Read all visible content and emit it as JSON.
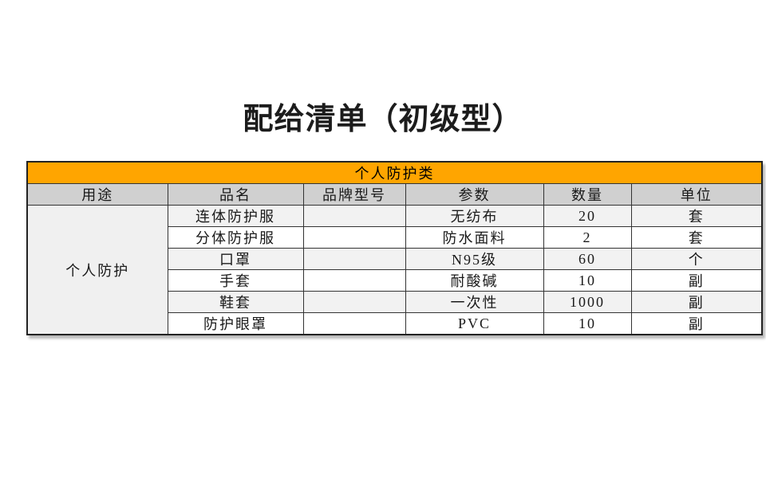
{
  "title": "配给清单（初级型）",
  "colors": {
    "band_orange": "#FFA500",
    "header_gray": "#D0D0D0",
    "alt_row_gray": "#F2F2F2",
    "usage_cell_gray": "#F0F0F0",
    "border": "#333333"
  },
  "table": {
    "category_header": "个人防护类",
    "columns": [
      {
        "label": "用途"
      },
      {
        "label": "品名"
      },
      {
        "label": "品牌型号"
      },
      {
        "label": "参数"
      },
      {
        "label": "数量"
      },
      {
        "label": "单位"
      }
    ],
    "usage": "个人防护",
    "rows": [
      {
        "name": "连体防护服",
        "brand": "",
        "param": "无纺布",
        "qty": "20",
        "unit": "套"
      },
      {
        "name": "分体防护服",
        "brand": "",
        "param": "防水面料",
        "qty": "2",
        "unit": "套"
      },
      {
        "name": "口罩",
        "brand": "",
        "param": "N95级",
        "qty": "60",
        "unit": "个"
      },
      {
        "name": "手套",
        "brand": "",
        "param": "耐酸碱",
        "qty": "10",
        "unit": "副"
      },
      {
        "name": "鞋套",
        "brand": "",
        "param": "一次性",
        "qty": "1000",
        "unit": "副"
      },
      {
        "name": "防护眼罩",
        "brand": "",
        "param": "PVC",
        "qty": "10",
        "unit": "副"
      }
    ]
  }
}
